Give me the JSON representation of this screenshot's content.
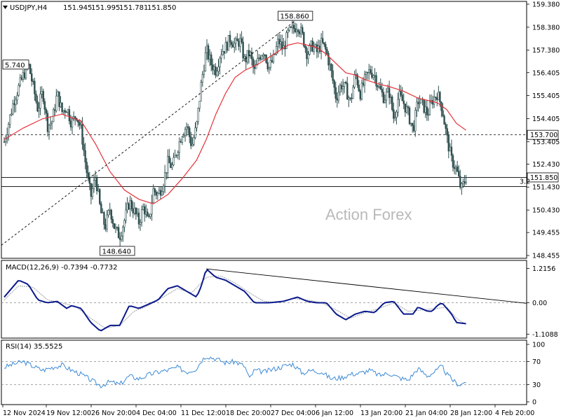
{
  "colors": {
    "candle": "#2f4f4f",
    "ma": "#e5323a",
    "macd": "#0b1a8c",
    "signal": "#9aa0a6",
    "rsi": "#3c8ad6",
    "grid_dash": "#888888",
    "frame": "#000000",
    "watermark": "#b9b9b9"
  },
  "chart_data": [
    {
      "type": "candlestick",
      "symbol_label": "USDJPY,H4",
      "ohlc_label": [
        "151.945",
        "151.995",
        "151.781",
        "151.850"
      ],
      "watermark": "Action Forex",
      "ylim": [
        148.455,
        159.38
      ],
      "yticks": [
        "159.380",
        "158.380",
        "157.380",
        "156.405",
        "155.405",
        "154.405",
        "153.405",
        "152.430",
        "151.430",
        "150.430",
        "149.455",
        "148.455"
      ],
      "ytick_values": [
        159.38,
        158.38,
        157.38,
        156.405,
        155.405,
        154.405,
        153.405,
        152.43,
        151.43,
        150.43,
        149.455,
        148.455
      ],
      "x_index_range": [
        0,
        100
      ],
      "price_path": [
        [
          0,
          153.4
        ],
        [
          2,
          155.2
        ],
        [
          4,
          156.3
        ],
        [
          5,
          156.8
        ],
        [
          6,
          155.8
        ],
        [
          7,
          154.8
        ],
        [
          8,
          155.6
        ],
        [
          9,
          154.1
        ],
        [
          10,
          154.3
        ],
        [
          11,
          155.5
        ],
        [
          12,
          154.7
        ],
        [
          13,
          154.9
        ],
        [
          14,
          154.2
        ],
        [
          15,
          154.6
        ],
        [
          16,
          153.9
        ],
        [
          17,
          152.3
        ],
        [
          18,
          151.0
        ],
        [
          19,
          151.9
        ],
        [
          20,
          150.4
        ],
        [
          21,
          149.7
        ],
        [
          22,
          150.5
        ],
        [
          23,
          149.6
        ],
        [
          24,
          149.3
        ],
        [
          25,
          150.0
        ],
        [
          26,
          150.8
        ],
        [
          27,
          150.4
        ],
        [
          28,
          149.9
        ],
        [
          29,
          150.6
        ],
        [
          30,
          149.8
        ],
        [
          31,
          151.3
        ],
        [
          32,
          151.1
        ],
        [
          33,
          151.6
        ],
        [
          34,
          152.5
        ],
        [
          35,
          152.3
        ],
        [
          36,
          153.1
        ],
        [
          37,
          153.8
        ],
        [
          38,
          154.1
        ],
        [
          39,
          153.2
        ],
        [
          40,
          154.1
        ],
        [
          41,
          156.0
        ],
        [
          42,
          157.4
        ],
        [
          43,
          156.8
        ],
        [
          44,
          156.5
        ],
        [
          45,
          157.3
        ],
        [
          46,
          157.5
        ],
        [
          47,
          157.9
        ],
        [
          48,
          157.6
        ],
        [
          49,
          157.8
        ],
        [
          50,
          156.9
        ],
        [
          51,
          157.3
        ],
        [
          52,
          156.4
        ],
        [
          53,
          157.1
        ],
        [
          54,
          157.4
        ],
        [
          55,
          156.6
        ],
        [
          56,
          157.0
        ],
        [
          57,
          157.8
        ],
        [
          58,
          157.4
        ],
        [
          59,
          158.1
        ],
        [
          60,
          158.3
        ],
        [
          61,
          158.5
        ],
        [
          62,
          158.0
        ],
        [
          63,
          157.2
        ],
        [
          64,
          157.6
        ],
        [
          65,
          157.3
        ],
        [
          66,
          157.7
        ],
        [
          67,
          157.3
        ],
        [
          68,
          156.4
        ],
        [
          69,
          155.3
        ],
        [
          70,
          155.9
        ],
        [
          71,
          155.7
        ],
        [
          72,
          155.1
        ],
        [
          73,
          156.4
        ],
        [
          74,
          155.5
        ],
        [
          75,
          156.1
        ],
        [
          76,
          156.5
        ],
        [
          77,
          156.3
        ],
        [
          78,
          155.7
        ],
        [
          79,
          155.3
        ],
        [
          80,
          155.6
        ],
        [
          81,
          154.4
        ],
        [
          82,
          155.4
        ],
        [
          83,
          155.1
        ],
        [
          84,
          154.6
        ],
        [
          85,
          153.9
        ],
        [
          86,
          155.2
        ],
        [
          87,
          155.0
        ],
        [
          88,
          154.6
        ],
        [
          89,
          155.2
        ],
        [
          90,
          155.5
        ],
        [
          91,
          154.9
        ],
        [
          92,
          153.6
        ],
        [
          93,
          152.6
        ],
        [
          94,
          152.2
        ],
        [
          95,
          151.3
        ],
        [
          96,
          151.85
        ]
      ],
      "moving_average": [
        [
          0,
          153.5
        ],
        [
          4,
          154.0
        ],
        [
          8,
          154.4
        ],
        [
          12,
          154.6
        ],
        [
          16,
          154.3
        ],
        [
          19,
          153.3
        ],
        [
          22,
          152.1
        ],
        [
          25,
          151.3
        ],
        [
          28,
          150.9
        ],
        [
          31,
          150.7
        ],
        [
          34,
          151.1
        ],
        [
          37,
          151.8
        ],
        [
          40,
          152.6
        ],
        [
          42,
          153.5
        ],
        [
          44,
          154.6
        ],
        [
          46,
          155.5
        ],
        [
          48,
          156.2
        ],
        [
          50,
          156.5
        ],
        [
          53,
          156.8
        ],
        [
          56,
          157.2
        ],
        [
          59,
          157.6
        ],
        [
          61,
          157.7
        ],
        [
          63,
          157.6
        ],
        [
          65,
          157.5
        ],
        [
          67,
          157.2
        ],
        [
          69,
          156.8
        ],
        [
          71,
          156.4
        ],
        [
          73,
          156.3
        ],
        [
          75,
          156.1
        ],
        [
          78,
          155.9
        ],
        [
          80,
          155.8
        ],
        [
          83,
          155.6
        ],
        [
          86,
          155.3
        ],
        [
          88,
          155.2
        ],
        [
          90,
          155.1
        ],
        [
          92,
          154.8
        ],
        [
          94,
          154.2
        ],
        [
          96,
          153.9
        ]
      ],
      "trendline": [
        [
          0,
          149.6
        ],
        [
          62,
          158.9
        ]
      ],
      "h_levels": [
        {
          "value": 153.7,
          "label": "153.700",
          "boxed": true
        },
        {
          "value": 151.85,
          "label": "151.850",
          "boxed": true
        },
        {
          "value": 151.45,
          "label": "",
          "boxed": false
        }
      ],
      "annotations": [
        {
          "label": "158.860",
          "x": 61,
          "y": 158.86
        },
        {
          "label": "148.640",
          "x": 24,
          "y": 148.64
        },
        {
          "label": "5.740",
          "x": 3,
          "y": 156.74
        }
      ],
      "partial_label": "3.2"
    },
    {
      "type": "line",
      "title": "MACD(12,26,9) -0.7394 -0.7732",
      "ylim": [
        -1.2,
        1.35
      ],
      "yticks": [
        "1.2156",
        "0.00",
        "-1.1088"
      ],
      "ytick_values": [
        1.2156,
        0.0,
        -1.1088
      ],
      "zero_level": 0.0,
      "series": [
        {
          "values": [
            [
              0,
              0.2
            ],
            [
              3,
              0.8
            ],
            [
              5,
              0.65
            ],
            [
              7,
              0.1
            ],
            [
              9,
              0.0
            ],
            [
              11,
              0.05
            ],
            [
              13,
              -0.2
            ],
            [
              14,
              -0.1
            ],
            [
              16,
              -0.2
            ],
            [
              18,
              -0.7
            ],
            [
              20,
              -1.0
            ],
            [
              22,
              -0.8
            ],
            [
              24,
              -0.8
            ],
            [
              26,
              -0.1
            ],
            [
              28,
              -0.2
            ],
            [
              30,
              -0.05
            ],
            [
              32,
              0.1
            ],
            [
              34,
              0.5
            ],
            [
              36,
              0.6
            ],
            [
              38,
              0.4
            ],
            [
              40,
              0.2
            ],
            [
              41,
              0.6
            ],
            [
              42,
              1.2
            ],
            [
              44,
              0.9
            ],
            [
              46,
              0.8
            ],
            [
              48,
              0.6
            ],
            [
              50,
              0.4
            ],
            [
              52,
              0.0
            ],
            [
              55,
              0.0
            ],
            [
              58,
              0.05
            ],
            [
              61,
              0.2
            ],
            [
              63,
              0.05
            ],
            [
              65,
              0.0
            ],
            [
              67,
              0.0
            ],
            [
              69,
              -0.4
            ],
            [
              71,
              -0.6
            ],
            [
              73,
              -0.4
            ],
            [
              75,
              -0.3
            ],
            [
              77,
              -0.35
            ],
            [
              79,
              0.0
            ],
            [
              81,
              0.05
            ],
            [
              83,
              -0.4
            ],
            [
              85,
              -0.4
            ],
            [
              86,
              -0.15
            ],
            [
              88,
              -0.3
            ],
            [
              89,
              -0.3
            ],
            [
              90,
              -0.1
            ],
            [
              91,
              0.0
            ],
            [
              93,
              -0.4
            ],
            [
              94,
              -0.7
            ],
            [
              96,
              -0.74
            ]
          ]
        },
        {
          "values": [
            [
              0,
              0.1
            ],
            [
              3,
              0.6
            ],
            [
              6,
              0.55
            ],
            [
              9,
              0.1
            ],
            [
              12,
              0.0
            ],
            [
              15,
              -0.15
            ],
            [
              18,
              -0.55
            ],
            [
              21,
              -0.9
            ],
            [
              24,
              -0.8
            ],
            [
              27,
              -0.3
            ],
            [
              30,
              -0.1
            ],
            [
              33,
              0.2
            ],
            [
              36,
              0.5
            ],
            [
              39,
              0.35
            ],
            [
              42,
              0.9
            ],
            [
              45,
              0.95
            ],
            [
              48,
              0.7
            ],
            [
              51,
              0.35
            ],
            [
              54,
              0.05
            ],
            [
              57,
              0.0
            ],
            [
              60,
              0.15
            ],
            [
              63,
              0.1
            ],
            [
              66,
              0.0
            ],
            [
              69,
              -0.25
            ],
            [
              72,
              -0.55
            ],
            [
              75,
              -0.35
            ],
            [
              78,
              -0.2
            ],
            [
              81,
              0.0
            ],
            [
              84,
              -0.3
            ],
            [
              87,
              -0.25
            ],
            [
              90,
              -0.2
            ],
            [
              92,
              -0.15
            ],
            [
              94,
              -0.55
            ],
            [
              96,
              -0.77
            ]
          ]
        }
      ],
      "trendline": [
        [
          42,
          1.2
        ],
        [
          100,
          -0.05
        ]
      ]
    },
    {
      "type": "line",
      "title": "RSI(14) 35.5525",
      "ylim": [
        0,
        100
      ],
      "yticks": [
        "100",
        "70",
        "30",
        "0"
      ],
      "ytick_values": [
        100,
        70,
        30,
        0
      ],
      "levels": [
        70,
        30
      ],
      "values": [
        [
          0,
          60
        ],
        [
          2,
          66
        ],
        [
          4,
          70
        ],
        [
          6,
          62
        ],
        [
          8,
          55
        ],
        [
          10,
          60
        ],
        [
          12,
          64
        ],
        [
          14,
          55
        ],
        [
          16,
          48
        ],
        [
          18,
          38
        ],
        [
          20,
          28
        ],
        [
          22,
          35
        ],
        [
          24,
          30
        ],
        [
          26,
          45
        ],
        [
          28,
          40
        ],
        [
          30,
          47
        ],
        [
          32,
          52
        ],
        [
          34,
          55
        ],
        [
          36,
          60
        ],
        [
          38,
          52
        ],
        [
          40,
          58
        ],
        [
          41,
          72
        ],
        [
          42,
          80
        ],
        [
          44,
          75
        ],
        [
          46,
          68
        ],
        [
          48,
          70
        ],
        [
          50,
          62
        ],
        [
          51,
          40
        ],
        [
          52,
          55
        ],
        [
          54,
          52
        ],
        [
          56,
          57
        ],
        [
          58,
          62
        ],
        [
          60,
          66
        ],
        [
          62,
          50
        ],
        [
          64,
          55
        ],
        [
          66,
          52
        ],
        [
          68,
          40
        ],
        [
          70,
          42
        ],
        [
          72,
          48
        ],
        [
          74,
          50
        ],
        [
          76,
          55
        ],
        [
          78,
          46
        ],
        [
          80,
          50
        ],
        [
          82,
          42
        ],
        [
          84,
          38
        ],
        [
          86,
          58
        ],
        [
          88,
          45
        ],
        [
          90,
          55
        ],
        [
          91,
          62
        ],
        [
          92,
          48
        ],
        [
          93,
          40
        ],
        [
          94,
          32
        ],
        [
          95,
          30
        ],
        [
          96,
          36
        ]
      ]
    }
  ],
  "x_axis": {
    "labels": [
      "12 Nov 2024",
      "19 Nov 12:00",
      "26 Nov 20:00",
      "4 Dec 04:00",
      "11 Dec 12:00",
      "18 Dec 20:00",
      "27 Dec 04:00",
      "6 Jan 12:00",
      "13 Jan 20:00",
      "21 Jan 04:00",
      "28 Jan 12:00",
      "4 Feb 20:00"
    ],
    "label_index": [
      0,
      10,
      20,
      30,
      40,
      50,
      60,
      70,
      80,
      90,
      100,
      108
    ]
  }
}
